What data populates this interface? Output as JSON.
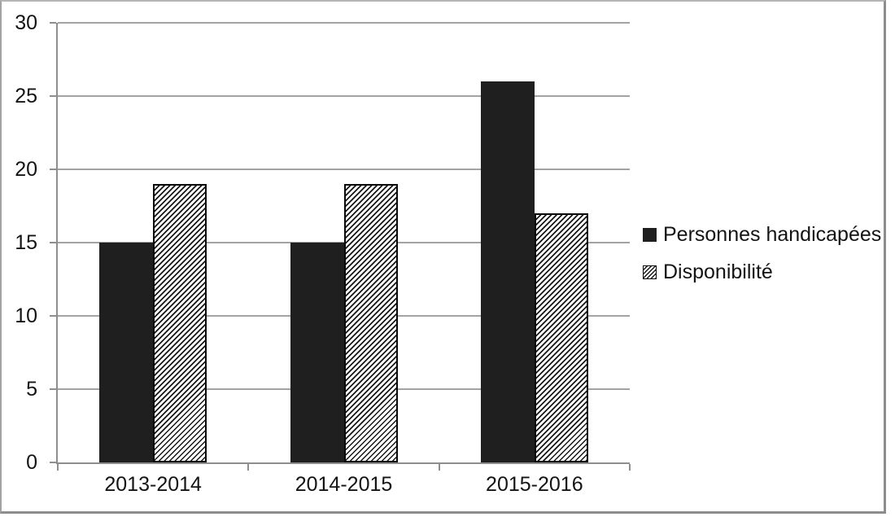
{
  "chart_data": {
    "type": "bar",
    "categories": [
      "2013-2014",
      "2014-2015",
      "2015-2016"
    ],
    "series": [
      {
        "name": "Personnes handicapées",
        "pattern": "solid",
        "values": [
          15,
          15,
          26
        ]
      },
      {
        "name": "Disponibilité",
        "pattern": "hatched",
        "values": [
          19,
          19,
          17
        ]
      }
    ],
    "title": "",
    "xlabel": "",
    "ylabel": "",
    "ylim": [
      0,
      30
    ],
    "yticks": [
      0,
      5,
      10,
      15,
      20,
      25,
      30
    ],
    "grid": true,
    "legend_position": "right"
  },
  "colors": {
    "bar_solid": "#1f1f1f",
    "bar_hatch_line": "#161616",
    "gridline": "#a3a3a3",
    "axis": "#8e8e8e",
    "frame_border": "#8d8d8d",
    "text": "#141414",
    "background": "#ffffff"
  }
}
